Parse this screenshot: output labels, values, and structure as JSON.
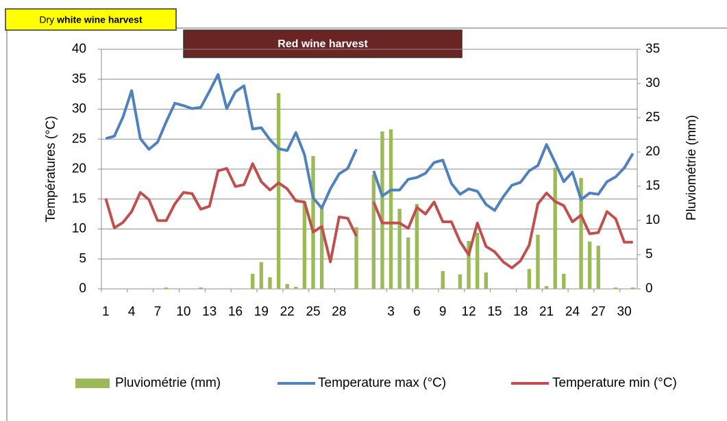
{
  "chart_data": {
    "type": "combo",
    "annotations": [
      {
        "parts": [
          "Dry",
          "white wine harvest"
        ],
        "color": "#ffff00"
      },
      {
        "parts": [
          "Red wine harvest"
        ],
        "color": "#6b2424"
      }
    ],
    "ylabel": "Températures (°C)",
    "y2label": "Pluviométrie (mm)",
    "categories": [
      "1",
      null,
      null,
      "4",
      null,
      null,
      "7",
      null,
      null,
      "10",
      null,
      null,
      "13",
      null,
      null,
      "16",
      null,
      null,
      "19",
      null,
      null,
      "22",
      null,
      null,
      "25",
      null,
      null,
      "28",
      null,
      null,
      null,
      null,
      null,
      "3",
      null,
      null,
      "6",
      null,
      null,
      "9",
      null,
      null,
      "12",
      null,
      null,
      "15",
      null,
      null,
      "18",
      null,
      null,
      "21",
      null,
      null,
      "24",
      null,
      null,
      "27",
      null,
      null,
      "30",
      null
    ],
    "series": [
      {
        "name": "Pluviométrie (mm)",
        "type": "bar",
        "axis": "y2",
        "color": "#9bbb59",
        "values": [
          0,
          0,
          0,
          0,
          0,
          0,
          0,
          0.2,
          0,
          0,
          0,
          0.2,
          0,
          0,
          0,
          0,
          0,
          2.2,
          3.9,
          1.7,
          28.6,
          0.7,
          0.3,
          12.7,
          19.4,
          12.2,
          0,
          0,
          0,
          9.0,
          null,
          16.7,
          23.0,
          23.3,
          11.7,
          7.5,
          12.4,
          0,
          0,
          2.6,
          0,
          2.1,
          7.0,
          8.2,
          2.4,
          0,
          0,
          0,
          0,
          2.9,
          7.9,
          0.4,
          17.7,
          2.2,
          0,
          16.2,
          6.9,
          6.3,
          0,
          0.2,
          0,
          0.2
        ]
      },
      {
        "name": "Temperature max (°C)",
        "type": "line",
        "color": "#4f81bd",
        "values": [
          25.1,
          25.5,
          28.7,
          33.1,
          25.1,
          23.3,
          24.5,
          27.9,
          31.0,
          30.6,
          30.1,
          30.3,
          33.0,
          35.8,
          30.1,
          32.9,
          33.9,
          26.7,
          26.9,
          24.9,
          23.4,
          23.1,
          26.1,
          22.4,
          15.2,
          13.5,
          16.7,
          19.2,
          20.1,
          23.3,
          null,
          19.7,
          15.5,
          16.5,
          16.5,
          18.3,
          18.6,
          19.3,
          21.1,
          21.5,
          17.6,
          15.8,
          16.7,
          16.3,
          14.1,
          13.1,
          15.4,
          17.3,
          17.8,
          19.7,
          20.6,
          24.1,
          21.1,
          17.9,
          19.5,
          14.9,
          16.0,
          15.8,
          17.9,
          18.7,
          20.2,
          22.6
        ]
      },
      {
        "name": "Temperature min (°C)",
        "type": "line",
        "color": "#c0504d",
        "values": [
          15.1,
          10.2,
          11.1,
          12.9,
          16.1,
          14.9,
          11.4,
          11.4,
          14.2,
          16.1,
          15.9,
          13.3,
          13.8,
          19.7,
          20.1,
          17.1,
          17.4,
          20.9,
          17.9,
          16.5,
          17.7,
          16.7,
          14.7,
          14.5,
          9.5,
          10.4,
          4.5,
          12.0,
          11.8,
          8.8,
          null,
          14.5,
          11.0,
          11.0,
          11.0,
          10.1,
          13.6,
          12.5,
          14.5,
          11.2,
          11.2,
          7.9,
          5.7,
          11.0,
          7.1,
          6.2,
          4.5,
          3.5,
          4.7,
          7.3,
          14.2,
          16.0,
          14.6,
          13.9,
          11.2,
          12.3,
          9.2,
          9.4,
          12.9,
          11.7,
          7.8,
          7.8
        ]
      }
    ],
    "ylim": [
      0,
      40
    ],
    "yticks": [
      0,
      5,
      10,
      15,
      20,
      25,
      30,
      35,
      40
    ],
    "y2lim": [
      0,
      35
    ],
    "y2ticks": [
      0,
      5,
      10,
      15,
      20,
      25,
      30,
      35
    ],
    "grid": true,
    "legend": "bottom"
  }
}
